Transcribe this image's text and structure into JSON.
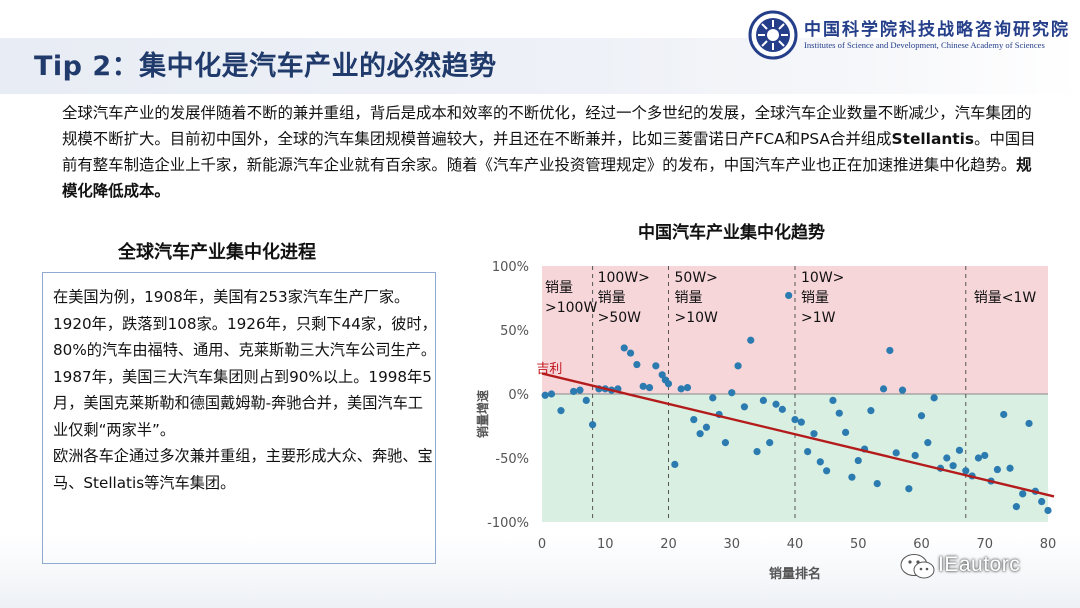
{
  "header": {
    "title": "Tip 2：集中化是汽车产业的必然趋势",
    "org_name_cn": "中国科学院科技战略咨询研究院",
    "org_name_en": "Institutes of Science and Development, Chinese Academy of Sciences"
  },
  "intro": {
    "text": "全球汽车产业的发展伴随着不断的兼并重组，背后是成本和效率的不断优化，经过一个多世纪的发展，全球汽车企业数量不断减少，汽车集团的规模不断扩大。目前初中国外，全球的汽车集团规模普遍较大，并且还在不断兼并，比如三菱雷诺日产FCA和PSA合并组成",
    "stellantis": "Stellantis",
    "text2": "。中国目前有整车制造企业上千家，新能源汽车企业就有百余家。随着《汽车产业投资管理规定》的发布，中国汽车产业也正在加速推进集中化趋势。",
    "bold_end": "规模化降低成本。"
  },
  "left_panel": {
    "heading": "全球汽车产业集中化进程",
    "paragraph1": "在美国为例，1908年，美国有253家汽车生产厂家。1920年，跌落到108家。1926年，只剩下44家，彼时，80%的汽车由福特、通用、克莱斯勒三大汽车公司生产。1987年，美国三大汽车集团则占到90%以上。1998年5月，美国克莱斯勒和德国戴姆勒-奔驰合并，美国汽车工业仅剩“两家半”。",
    "paragraph2": "欧洲各车企通过多次兼并重组，主要形成大众、奔驰、宝马、Stellatis等汽车集团。"
  },
  "chart_data": {
    "type": "scatter",
    "title": "中国汽车产业集中化趋势",
    "xlabel": "销量排名",
    "ylabel": "销量增速",
    "xlim": [
      0,
      80
    ],
    "ylim": [
      -100,
      100
    ],
    "x_ticks": [
      "0",
      "10",
      "20",
      "30",
      "40",
      "50",
      "60",
      "70",
      "80"
    ],
    "y_ticks": [
      "100%",
      "50%",
      "0%",
      "-50%",
      "-100%"
    ],
    "y_tick_values": [
      100,
      50,
      0,
      -50,
      -100
    ],
    "x_tick_values": [
      0,
      10,
      20,
      30,
      40,
      50,
      60,
      70,
      80
    ],
    "segment_boundaries": [
      8,
      20,
      40,
      67
    ],
    "segments": [
      {
        "label_lines": [
          "销量",
          ">100W"
        ]
      },
      {
        "label_lines": [
          "100W>",
          "销量",
          ">50W"
        ]
      },
      {
        "label_lines": [
          "50W>",
          "销量",
          ">10W"
        ]
      },
      {
        "label_lines": [
          "10W>",
          "销量",
          ">1W"
        ]
      },
      {
        "label_lines": [
          "销量<1W"
        ]
      }
    ],
    "annotation": {
      "text": "吉利",
      "x": 1,
      "y": 10
    },
    "trendline": {
      "x": [
        0,
        81
      ],
      "y": [
        16,
        -80
      ]
    },
    "points": [
      [
        0.5,
        -1
      ],
      [
        1.5,
        0
      ],
      [
        3,
        -13
      ],
      [
        5,
        2
      ],
      [
        6,
        3
      ],
      [
        7,
        -5
      ],
      [
        8,
        -24
      ],
      [
        9,
        4
      ],
      [
        10,
        4
      ],
      [
        11,
        3
      ],
      [
        12,
        4
      ],
      [
        13,
        36
      ],
      [
        14,
        32
      ],
      [
        15,
        23
      ],
      [
        16,
        6
      ],
      [
        17,
        5
      ],
      [
        18,
        22
      ],
      [
        19,
        15
      ],
      [
        19.5,
        11
      ],
      [
        20,
        8
      ],
      [
        21,
        -55
      ],
      [
        22,
        4
      ],
      [
        23,
        5
      ],
      [
        24,
        -20
      ],
      [
        25,
        -31
      ],
      [
        26,
        -26
      ],
      [
        27,
        -3
      ],
      [
        28,
        -16
      ],
      [
        29,
        -38
      ],
      [
        30,
        1
      ],
      [
        31,
        22
      ],
      [
        32,
        -10
      ],
      [
        33,
        42
      ],
      [
        34,
        -45
      ],
      [
        35,
        -5
      ],
      [
        36,
        -38
      ],
      [
        37,
        -8
      ],
      [
        38,
        -12
      ],
      [
        39,
        77
      ],
      [
        40,
        -20
      ],
      [
        41,
        -22
      ],
      [
        42,
        -45
      ],
      [
        43,
        -31
      ],
      [
        44,
        -53
      ],
      [
        45,
        -60
      ],
      [
        46,
        -5
      ],
      [
        47,
        -15
      ],
      [
        48,
        -30
      ],
      [
        49,
        -65
      ],
      [
        50,
        -52
      ],
      [
        51,
        -43
      ],
      [
        52,
        -13
      ],
      [
        53,
        -70
      ],
      [
        54,
        4
      ],
      [
        55,
        34
      ],
      [
        56,
        -46
      ],
      [
        57,
        3
      ],
      [
        58,
        -74
      ],
      [
        59,
        -48
      ],
      [
        60,
        -17
      ],
      [
        61,
        -38
      ],
      [
        62,
        -3
      ],
      [
        63,
        -58
      ],
      [
        64,
        -50
      ],
      [
        65,
        -56
      ],
      [
        66,
        -44
      ],
      [
        67,
        -60
      ],
      [
        68,
        -64
      ],
      [
        69,
        -50
      ],
      [
        70,
        -48
      ],
      [
        71,
        -68
      ],
      [
        72,
        -59
      ],
      [
        73,
        -16
      ],
      [
        74,
        -58
      ],
      [
        75,
        -88
      ],
      [
        76,
        -78
      ],
      [
        77,
        -23
      ],
      [
        78,
        -76
      ],
      [
        79,
        -84
      ],
      [
        80,
        -91
      ]
    ]
  },
  "watermark": {
    "text": "IEautorc",
    "icon": "wechat-icon"
  }
}
